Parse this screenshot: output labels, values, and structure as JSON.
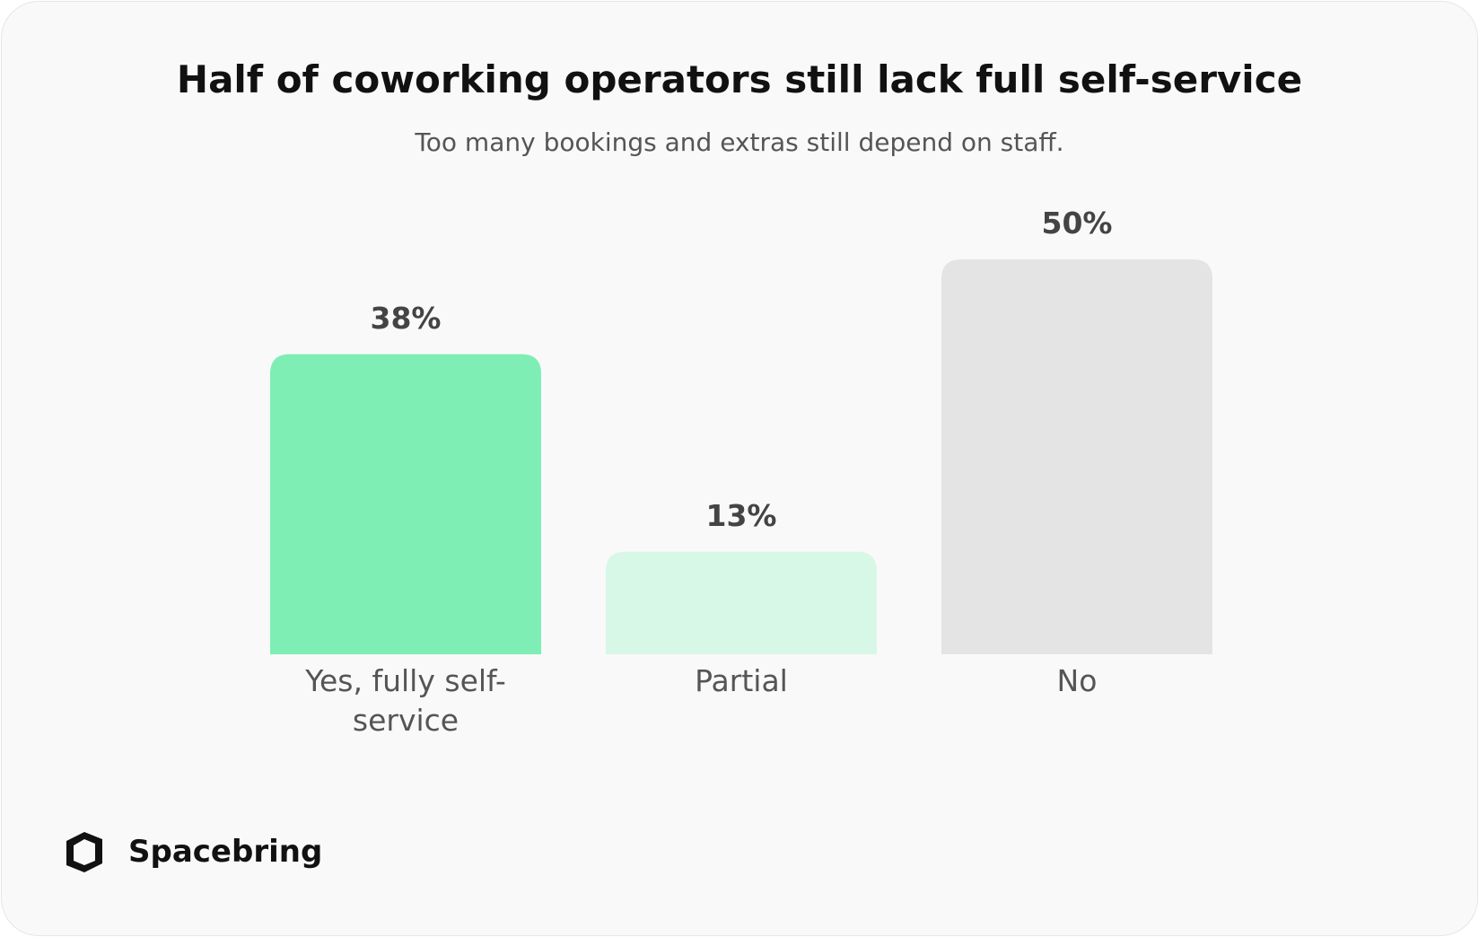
{
  "title": "Half of coworking operators still lack full self-service",
  "subtitle": "Too many bookings and extras still depend on staff.",
  "brand": "Spacebring",
  "chart_data": {
    "type": "bar",
    "categories": [
      "Yes, fully self-service",
      "Partial",
      "No"
    ],
    "values": [
      38,
      13,
      50
    ],
    "value_labels": [
      "38%",
      "13%",
      "50%"
    ],
    "colors": [
      "#7eeeb4",
      "#d7f8e7",
      "#e4e4e4"
    ]
  }
}
